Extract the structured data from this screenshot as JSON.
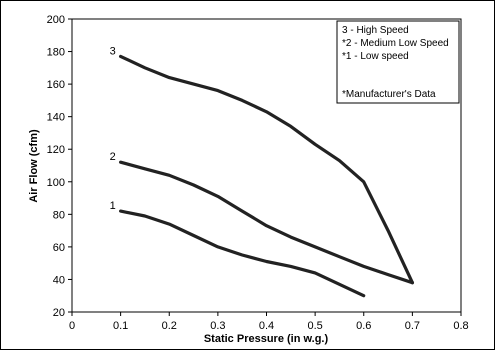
{
  "chart_data": {
    "type": "line",
    "xlabel": "Static Pressure (in w.g.)",
    "ylabel": "Air Flow (cfm)",
    "xlim": [
      0,
      0.8
    ],
    "ylim": [
      20,
      200
    ],
    "xticks": [
      "0",
      "0.1",
      "0.2",
      "0.3",
      "0.4",
      "0.5",
      "0.6",
      "0.7",
      "0.8"
    ],
    "yticks": [
      "20",
      "40",
      "60",
      "80",
      "100",
      "120",
      "140",
      "160",
      "180",
      "200"
    ],
    "grid": false,
    "legend_position": "top-right",
    "legend": [
      "3 - High Speed",
      "*2 - Medium Low Speed",
      "*1 - Low speed",
      "",
      "*Manufacturer's Data"
    ],
    "series": [
      {
        "label": "3",
        "x": [
          0.1,
          0.15,
          0.2,
          0.25,
          0.3,
          0.35,
          0.4,
          0.45,
          0.5,
          0.55,
          0.6,
          0.65,
          0.7
        ],
        "y": [
          177,
          170,
          164,
          160,
          156,
          150,
          143,
          134,
          123,
          113,
          100,
          70,
          38
        ]
      },
      {
        "label": "2",
        "x": [
          0.1,
          0.15,
          0.2,
          0.25,
          0.3,
          0.35,
          0.4,
          0.45,
          0.5,
          0.55,
          0.6,
          0.65,
          0.7
        ],
        "y": [
          112,
          108,
          104,
          98,
          91,
          82,
          73,
          66,
          60,
          54,
          48,
          43,
          38
        ]
      },
      {
        "label": "1",
        "x": [
          0.1,
          0.15,
          0.2,
          0.25,
          0.3,
          0.35,
          0.4,
          0.45,
          0.5,
          0.55,
          0.6
        ],
        "y": [
          82,
          79,
          74,
          67,
          60,
          55,
          51,
          48,
          44,
          37,
          30
        ]
      }
    ]
  }
}
